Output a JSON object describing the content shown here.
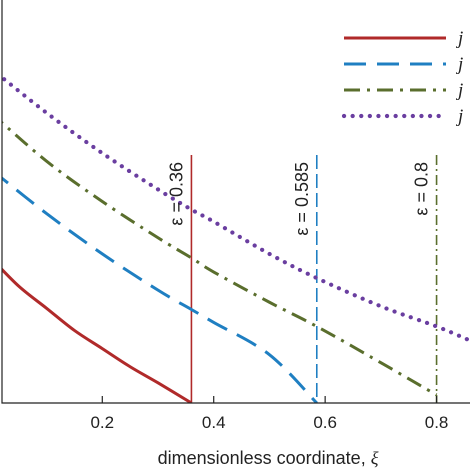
{
  "chart_data": {
    "type": "line",
    "xlabel": "dimensionless coordinate, ",
    "xlabel_symbol": "ξ",
    "xlim": [
      0.02,
      0.86
    ],
    "ylim": [
      0,
      1
    ],
    "x_ticks": [
      0.2,
      0.4,
      0.6,
      0.8
    ],
    "x_tick_labels": [
      "0.2",
      "0.4",
      "0.6",
      "0.8"
    ],
    "legend_position": "top-right",
    "series": [
      {
        "name": "j",
        "color": "#b02a2a",
        "dash": "solid",
        "x": [
          0.0,
          0.05,
          0.1,
          0.15,
          0.2,
          0.25,
          0.3,
          0.36
        ],
        "y": [
          0.36,
          0.29,
          0.235,
          0.18,
          0.135,
          0.09,
          0.05,
          0.0
        ]
      },
      {
        "name": "j",
        "color": "#1f7fc2",
        "dash": "long-dash",
        "x": [
          0.0,
          0.1,
          0.2,
          0.3,
          0.36,
          0.4,
          0.5,
          0.585
        ],
        "y": [
          0.58,
          0.47,
          0.37,
          0.28,
          0.232,
          0.2,
          0.12,
          0.0
        ]
      },
      {
        "name": "j",
        "color": "#5a6e2d",
        "dash": "dash-dot",
        "x": [
          0.0,
          0.1,
          0.2,
          0.3,
          0.36,
          0.4,
          0.5,
          0.585,
          0.7,
          0.8
        ],
        "y": [
          0.72,
          0.6,
          0.5,
          0.41,
          0.36,
          0.325,
          0.25,
          0.19,
          0.1,
          0.02
        ]
      },
      {
        "name": "j",
        "color": "#6a3ea0",
        "dash": "dotted",
        "x": [
          0.0,
          0.1,
          0.2,
          0.3,
          0.36,
          0.4,
          0.5,
          0.585,
          0.7,
          0.8,
          0.86
        ],
        "y": [
          0.83,
          0.72,
          0.62,
          0.53,
          0.48,
          0.45,
          0.37,
          0.31,
          0.24,
          0.19,
          0.155
        ]
      }
    ],
    "markers": [
      {
        "x": 0.36,
        "label": "ε = 0.36",
        "color": "#b02a2a",
        "dash": "solid",
        "y_top": 1.0
      },
      {
        "x": 0.585,
        "label": "ε = 0.585",
        "color": "#1f7fc2",
        "dash": "long-dash",
        "y_top": 1.0
      },
      {
        "x": 0.8,
        "label": "ε = 0.8",
        "color": "#5a6e2d",
        "dash": "dash-dot",
        "y_top": 1.0
      }
    ]
  }
}
